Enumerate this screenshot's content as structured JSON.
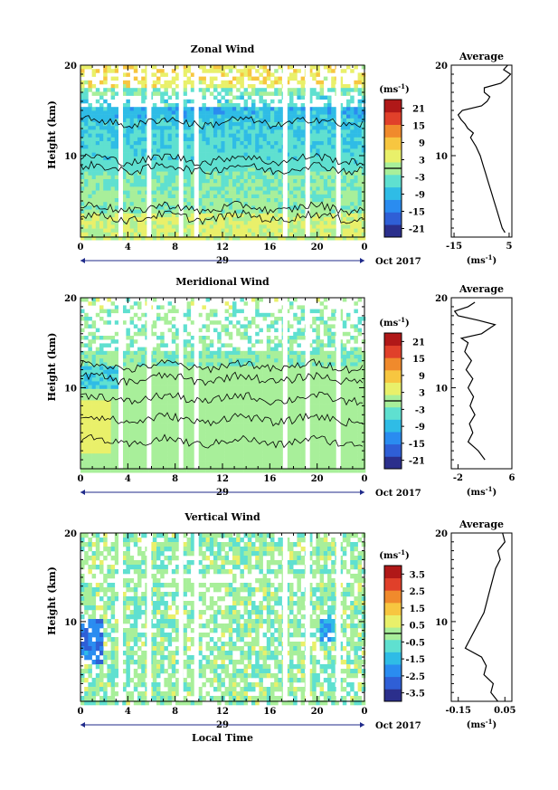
{
  "chart_data": [
    {
      "type": "heatmap",
      "title": "Zonal Wind",
      "ylabel": "Height (km)",
      "y_ticks": [
        "20",
        "10"
      ],
      "ylim": [
        1,
        20
      ],
      "x_ticks": [
        "0",
        "4",
        "8",
        "12",
        "16",
        "20",
        "0"
      ],
      "xlim": [
        0,
        24
      ],
      "date_marker": "29",
      "date_right": "Oct 2017",
      "colorbar": {
        "unit": "(ms",
        "unit_sup": "-1",
        "unit_close": ")",
        "ticks": [
          "21",
          "15",
          "9",
          "3",
          "-3",
          "-9",
          "-15",
          "-21"
        ],
        "range": [
          -24,
          24
        ]
      },
      "gaps_hours": [
        3.4,
        5.8,
        8.5,
        9.8,
        17.3,
        19.2,
        21.8
      ],
      "average": {
        "title": "Average",
        "x_ticks": [
          "-15",
          "5"
        ],
        "xlim": [
          -16,
          6
        ],
        "y_ticks": [
          "20",
          "10"
        ],
        "unit": "(ms",
        "unit_sup": "-1",
        "unit_close": ")",
        "profile": {
          "height": [
            1.5,
            2,
            3,
            4,
            5,
            6,
            7,
            8,
            9,
            10,
            11,
            12,
            12.5,
            13,
            13.5,
            14,
            14.5,
            15,
            15.5,
            16,
            16.5,
            17,
            17.5,
            18,
            18.5,
            19,
            19.5,
            20
          ],
          "value": [
            3.5,
            2.5,
            1.5,
            0.5,
            -0.5,
            -1.5,
            -2.5,
            -3.5,
            -4.5,
            -5.5,
            -7,
            -9,
            -8,
            -10,
            -11,
            -12.5,
            -13.5,
            -12,
            -5,
            -3,
            -2,
            -4,
            -4,
            2,
            4,
            5.5,
            3,
            4.5
          ]
        }
      }
    },
    {
      "type": "heatmap",
      "title": "Meridional Wind",
      "ylabel": "Height (km)",
      "y_ticks": [
        "20",
        "10"
      ],
      "ylim": [
        1,
        20
      ],
      "x_ticks": [
        "0",
        "4",
        "8",
        "12",
        "16",
        "20",
        "0"
      ],
      "xlim": [
        0,
        24
      ],
      "date_marker": "29",
      "date_right": "Oct 2017",
      "colorbar": {
        "unit": "(ms",
        "unit_sup": "-1",
        "unit_close": ")",
        "ticks": [
          "21",
          "15",
          "9",
          "3",
          "-3",
          "-9",
          "-15",
          "-21"
        ],
        "range": [
          -24,
          24
        ]
      },
      "gaps_hours": [
        3.4,
        5.8,
        8.5,
        9.8,
        17.3,
        19.2,
        21.8
      ],
      "average": {
        "title": "Average",
        "x_ticks": [
          "-2",
          "6"
        ],
        "xlim": [
          -3,
          6
        ],
        "y_ticks": [
          "20",
          "10"
        ],
        "unit": "(ms",
        "unit_sup": "-1",
        "unit_close": ")",
        "profile": {
          "height": [
            2,
            3,
            4,
            5,
            6,
            7,
            8,
            9,
            10,
            11,
            12,
            13,
            14,
            15,
            15.5,
            16,
            16.5,
            17,
            17.5,
            18,
            18.5,
            19,
            19.5
          ],
          "value": [
            2,
            1,
            -0.5,
            0.2,
            -0.3,
            0.5,
            -0.2,
            0.3,
            -0.5,
            0.2,
            -0.8,
            0,
            -1,
            -0.5,
            -1.5,
            1.5,
            2.5,
            3.5,
            1,
            -2,
            -2.5,
            -0.5,
            0.5
          ]
        }
      }
    },
    {
      "type": "heatmap",
      "title": "Vertical Wind",
      "ylabel": "Height (km)",
      "xlabel": "Local Time",
      "y_ticks": [
        "20",
        "10"
      ],
      "ylim": [
        1,
        20
      ],
      "x_ticks": [
        "0",
        "4",
        "8",
        "12",
        "16",
        "20",
        "0"
      ],
      "xlim": [
        0,
        24
      ],
      "date_marker": "29",
      "date_right": "Oct 2017",
      "colorbar": {
        "unit": "(ms",
        "unit_sup": "-1",
        "unit_close": ")",
        "ticks": [
          "3.5",
          "2.5",
          "1.5",
          "0.5",
          "-0.5",
          "-1.5",
          "-2.5",
          "-3.5"
        ],
        "range": [
          -4,
          4
        ]
      },
      "gaps_hours": [
        3.4,
        5.8,
        8.5,
        9.8,
        17.3,
        19.2,
        21.8
      ],
      "average": {
        "title": "Average",
        "x_ticks": [
          "-0.15",
          "0.05"
        ],
        "xlim": [
          -0.18,
          0.08
        ],
        "y_ticks": [
          "20",
          "10"
        ],
        "unit": "(ms",
        "unit_sup": "-1",
        "unit_close": ")",
        "profile": {
          "height": [
            1,
            2,
            3,
            4,
            5,
            6,
            7,
            8,
            9,
            10,
            11,
            12,
            13,
            14,
            15,
            16,
            17,
            18,
            19,
            20
          ],
          "value": [
            0.02,
            -0.01,
            0.0,
            -0.04,
            -0.03,
            -0.05,
            -0.12,
            -0.1,
            -0.08,
            -0.06,
            -0.04,
            -0.03,
            -0.02,
            -0.01,
            0.0,
            0.01,
            0.03,
            0.02,
            0.05,
            0.04
          ]
        }
      }
    }
  ],
  "colors": {
    "scale": [
      "#2b2f8c",
      "#2f5fd6",
      "#2a8cf0",
      "#2fbce6",
      "#5fe0d0",
      "#a8ef9a",
      "#e9f06a",
      "#f7c640",
      "#f08a2c",
      "#e0402a",
      "#b01818"
    ]
  }
}
